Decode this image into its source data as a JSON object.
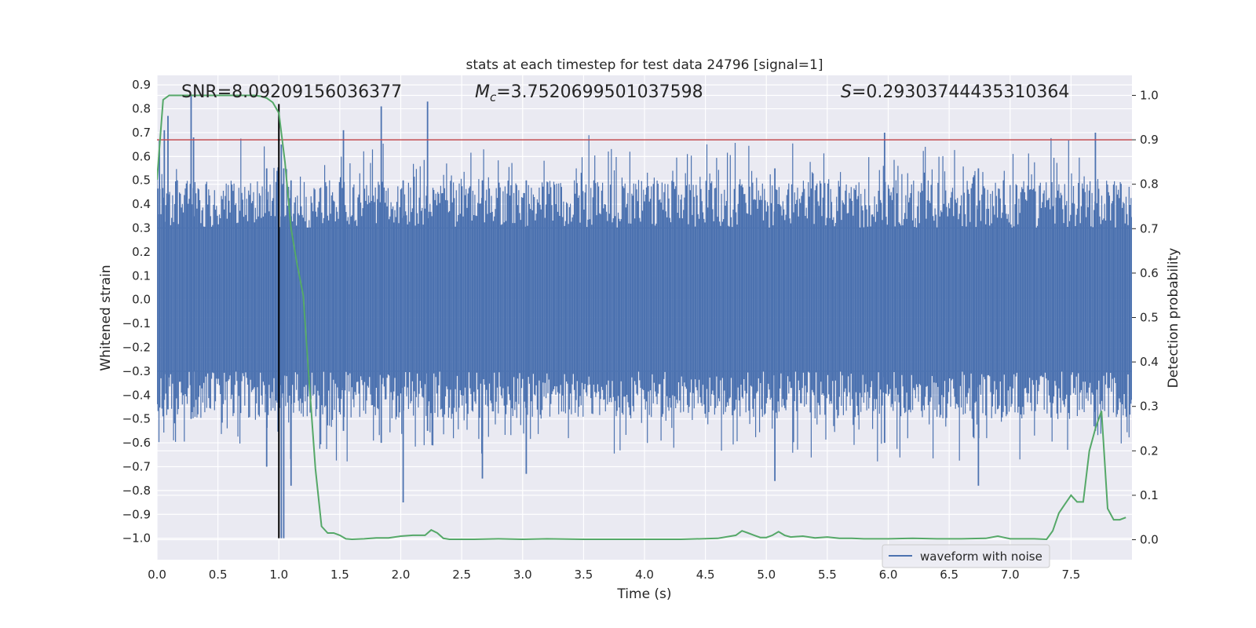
{
  "chart_data": {
    "type": "line",
    "title": "stats at each timestep for test data 24796 [signal=1]",
    "xlabel": "Time (s)",
    "ylabel": "Whitened strain",
    "y2label": "Detection probability",
    "xlim": [
      0.0,
      8.0
    ],
    "ylim": [
      -1.09,
      0.94
    ],
    "y2lim": [
      -0.045,
      1.045
    ],
    "x_ticks": [
      "0.0",
      "0.5",
      "1.0",
      "1.5",
      "2.0",
      "2.5",
      "3.0",
      "3.5",
      "4.0",
      "4.5",
      "5.0",
      "5.5",
      "6.0",
      "6.5",
      "7.0",
      "7.5"
    ],
    "y_ticks": [
      "0.9",
      "0.8",
      "0.7",
      "0.6",
      "0.5",
      "0.4",
      "0.3",
      "0.2",
      "0.1",
      "0.0",
      "−0.1",
      "−0.2",
      "−0.3",
      "−0.4",
      "−0.5",
      "−0.6",
      "−0.7",
      "−0.8",
      "−0.9",
      "−1.0"
    ],
    "y2_ticks": [
      "1.0",
      "0.9",
      "0.8",
      "0.7",
      "0.6",
      "0.5",
      "0.4",
      "0.3",
      "0.2",
      "0.1",
      "0.0"
    ],
    "annotations": {
      "snr": "SNR=8.09209156036377",
      "mc_symbol": "M",
      "mc_sub": "c",
      "mc_value": "=3.7520699501037598",
      "s_symbol": "S",
      "s_value": "=0.29303744435310364"
    },
    "threshold_y2": 0.9,
    "vline_x": 1.0,
    "legend": {
      "label": "waveform with noise",
      "placement": "lower-right"
    },
    "series": [
      {
        "name": "waveform with noise",
        "color": "#4c72b0",
        "kind": "noise",
        "amplitude_core": 0.3,
        "peaks": [
          {
            "x": 0.02,
            "min": -0.45,
            "max": 0.67
          },
          {
            "x": 0.06,
            "min": -0.42,
            "max": 0.71
          },
          {
            "x": 0.09,
            "min": -0.46,
            "max": 0.77
          },
          {
            "x": 0.28,
            "min": -0.5,
            "max": 0.86
          },
          {
            "x": 0.3,
            "min": -0.45,
            "max": 0.68
          },
          {
            "x": 0.9,
            "min": -0.7,
            "max": 0.55
          },
          {
            "x": 1.02,
            "min": -1.0,
            "max": 0.65
          },
          {
            "x": 1.04,
            "min": -1.0,
            "max": 0.55
          },
          {
            "x": 1.1,
            "min": -0.78,
            "max": 0.5
          },
          {
            "x": 1.53,
            "min": -0.55,
            "max": 0.71
          },
          {
            "x": 1.84,
            "min": -0.6,
            "max": 0.81
          },
          {
            "x": 2.02,
            "min": -0.85,
            "max": 0.5
          },
          {
            "x": 2.22,
            "min": -0.55,
            "max": 0.83
          },
          {
            "x": 2.67,
            "min": -0.75,
            "max": 0.5
          },
          {
            "x": 3.03,
            "min": -0.73,
            "max": 0.5
          },
          {
            "x": 5.07,
            "min": -0.76,
            "max": 0.55
          },
          {
            "x": 5.97,
            "min": -0.6,
            "max": 0.7
          },
          {
            "x": 6.74,
            "min": -0.78,
            "max": 0.55
          },
          {
            "x": 7.7,
            "min": -0.55,
            "max": 0.7
          }
        ]
      },
      {
        "name": "Detection probability",
        "color": "#55a868",
        "axis": "y2",
        "x": [
          0.0,
          0.05,
          0.1,
          0.2,
          0.3,
          0.4,
          0.5,
          0.6,
          0.7,
          0.8,
          0.85,
          0.9,
          0.95,
          1.0,
          1.05,
          1.1,
          1.15,
          1.2,
          1.25,
          1.3,
          1.35,
          1.4,
          1.45,
          1.5,
          1.55,
          1.6,
          1.7,
          1.8,
          1.9,
          2.0,
          2.1,
          2.2,
          2.25,
          2.3,
          2.35,
          2.4,
          2.5,
          2.6,
          2.8,
          3.0,
          3.2,
          3.5,
          3.8,
          4.0,
          4.3,
          4.6,
          4.75,
          4.8,
          4.85,
          4.9,
          4.95,
          5.0,
          5.05,
          5.1,
          5.15,
          5.2,
          5.3,
          5.4,
          5.5,
          5.6,
          5.7,
          5.8,
          6.0,
          6.2,
          6.4,
          6.6,
          6.8,
          6.9,
          6.95,
          7.0,
          7.1,
          7.2,
          7.3,
          7.35,
          7.4,
          7.45,
          7.5,
          7.55,
          7.6,
          7.65,
          7.7,
          7.75,
          7.8,
          7.85,
          7.9,
          7.95
        ],
        "values": [
          0.81,
          0.99,
          1.0,
          1.0,
          1.0,
          1.0,
          1.0,
          1.0,
          1.0,
          1.0,
          0.998,
          0.994,
          0.984,
          0.96,
          0.85,
          0.7,
          0.62,
          0.55,
          0.35,
          0.16,
          0.03,
          0.015,
          0.015,
          0.01,
          0.002,
          0.001,
          0.002,
          0.004,
          0.004,
          0.008,
          0.01,
          0.01,
          0.022,
          0.015,
          0.003,
          0.001,
          0.001,
          0.001,
          0.002,
          0.001,
          0.002,
          0.001,
          0.001,
          0.001,
          0.001,
          0.003,
          0.01,
          0.02,
          0.015,
          0.01,
          0.005,
          0.005,
          0.01,
          0.018,
          0.01,
          0.006,
          0.008,
          0.004,
          0.006,
          0.003,
          0.003,
          0.002,
          0.002,
          0.003,
          0.002,
          0.002,
          0.003,
          0.008,
          0.005,
          0.002,
          0.002,
          0.002,
          0.001,
          0.02,
          0.06,
          0.08,
          0.1,
          0.085,
          0.085,
          0.2,
          0.25,
          0.29,
          0.07,
          0.045,
          0.045,
          0.05
        ]
      }
    ]
  }
}
